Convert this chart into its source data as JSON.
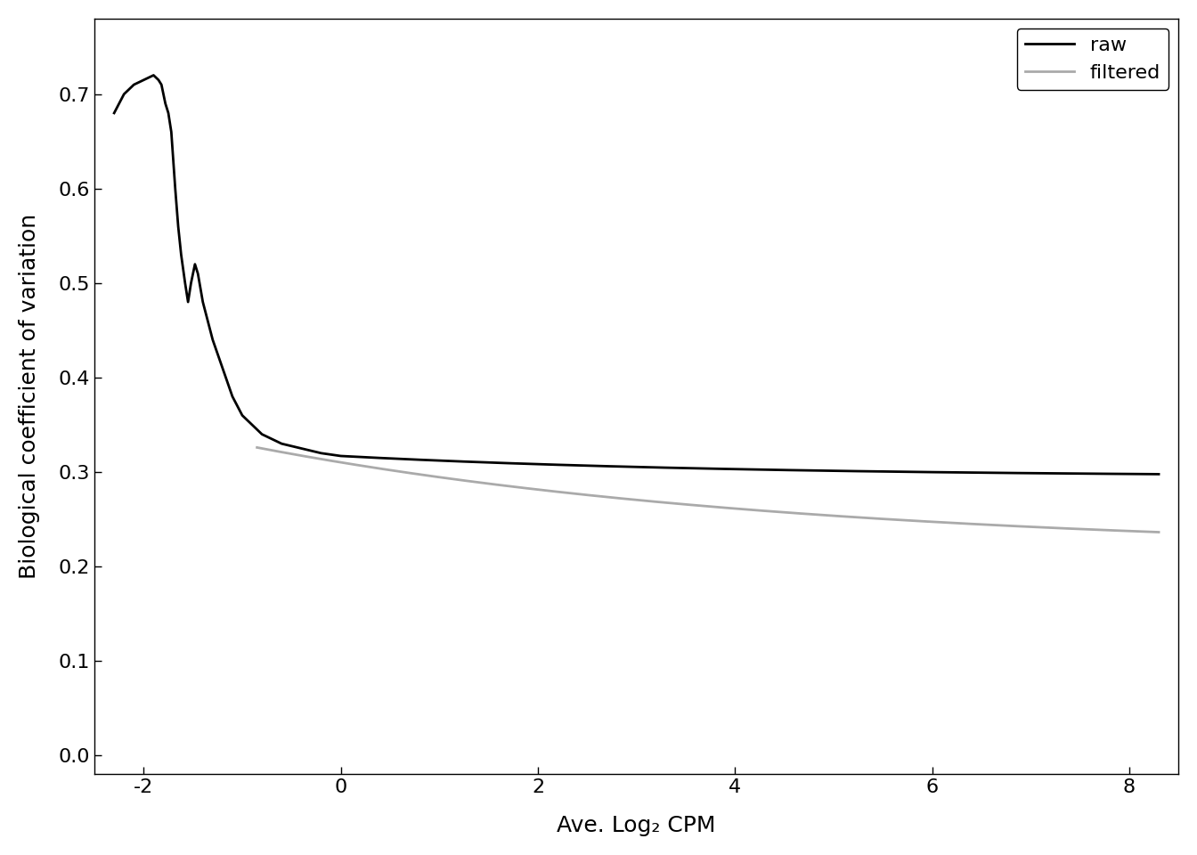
{
  "title": "",
  "xlabel": "Ave. Log₂ CPM",
  "ylabel": "Biological coefficient of variation",
  "xlim": [
    -2.5,
    8.5
  ],
  "ylim": [
    -0.02,
    0.78
  ],
  "xticks": [
    -2,
    0,
    2,
    4,
    6,
    8
  ],
  "yticks": [
    0.0,
    0.1,
    0.2,
    0.3,
    0.4,
    0.5,
    0.6,
    0.7
  ],
  "raw_color": "#000000",
  "filtered_color": "#aaaaaa",
  "legend_labels": [
    "raw",
    "filtered"
  ],
  "background_color": "#ffffff",
  "line_width": 2.0
}
